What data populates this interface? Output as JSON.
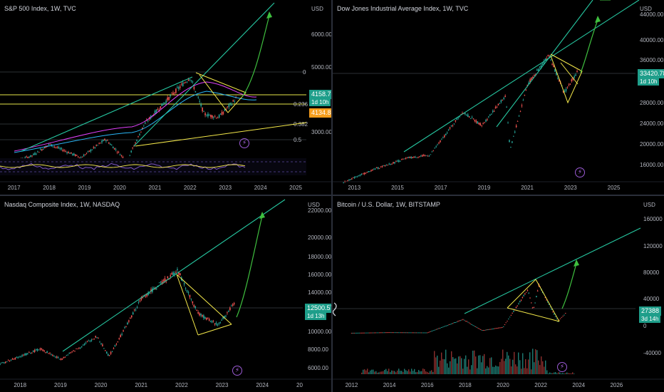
{
  "colors": {
    "trend": "#26c6a0",
    "wedge": "#f5e94a",
    "projection": "#3fbf3f",
    "candle_up": "#26a69a",
    "candle_down": "#ef5350",
    "price_tag": "#1e9e8a",
    "orange_tag": "#f59d1c"
  },
  "panels": [
    {
      "id": "spx",
      "title": "S&P 500 Index, 1W, TVC",
      "currency": "USD",
      "price_label": "4158.78",
      "countdown": "1d 10h",
      "secondary_label": "4134.83",
      "y_ticks": [
        "6000.00",
        "5000.00",
        "3000.00"
      ],
      "fib_levels": [
        "0",
        "0.236",
        "0.382",
        "0.5"
      ],
      "x_ticks": [
        "2017",
        "2018",
        "2019",
        "2020",
        "2021",
        "2022",
        "2023",
        "2024",
        "2025"
      ]
    },
    {
      "id": "dji",
      "title": "Dow Jones Industrial Average Index, 1W, TVC",
      "currency": "USD",
      "price_label": "33420.78",
      "countdown": "1d 10h",
      "y_ticks": [
        "44000.00",
        "40000.00",
        "36000.00",
        "28000.00",
        "24000.00",
        "20000.00",
        "16000.00"
      ],
      "x_ticks": [
        "2013",
        "2015",
        "2017",
        "2019",
        "2021",
        "2023",
        "2025"
      ]
    },
    {
      "id": "ndx",
      "title": "Nasdaq Composite Index, 1W, NASDAQ",
      "currency": "USD",
      "price_label": "12500.57",
      "countdown": "1d 13h",
      "y_ticks": [
        "22000.00",
        "20000.00",
        "18000.00",
        "16000.00",
        "14000.00",
        "10000.00",
        "8000.00",
        "6000.00"
      ],
      "x_ticks": [
        "2018",
        "2019",
        "2020",
        "2021",
        "2022",
        "2023",
        "2024",
        "20"
      ]
    },
    {
      "id": "btc",
      "title": "Bitcoin / U.S. Dollar, 1W, BITSTAMP",
      "currency": "USD",
      "price_label": "27388",
      "countdown": "3d 14h",
      "y_ticks": [
        "160000",
        "120000",
        "80000",
        "40000",
        "0",
        "-40000"
      ],
      "x_ticks": [
        "2012",
        "2014",
        "2016",
        "2018",
        "2020",
        "2022",
        "2024",
        "2026"
      ]
    }
  ],
  "chart_data": [
    {
      "type": "line",
      "title": "S&P 500 Index, 1W, TVC",
      "x": [
        2016.6,
        2017.5,
        2018.0,
        2018.9,
        2019.6,
        2020.2,
        2020.7,
        2021.5,
        2022.0,
        2022.4,
        2022.8,
        2023.3
      ],
      "series": [
        {
          "values": [
            2150,
            2450,
            2800,
            2400,
            2950,
            2300,
            3400,
            4300,
            4800,
            3700,
            3600,
            4158
          ]
        }
      ],
      "ylim": [
        2000,
        7000
      ]
    },
    {
      "type": "line",
      "title": "Dow Jones Industrial Average Index, 1W, TVC",
      "x": [
        2012.5,
        2014.0,
        2015.5,
        2016.5,
        2018.0,
        2018.9,
        2020.0,
        2020.2,
        2021.0,
        2022.0,
        2022.7,
        2023.3
      ],
      "series": [
        {
          "values": [
            13000,
            15500,
            17500,
            18000,
            26000,
            23500,
            29000,
            19000,
            31000,
            36500,
            29500,
            33420
          ]
        }
      ],
      "ylim": [
        14000,
        46000
      ]
    },
    {
      "type": "line",
      "title": "Nasdaq Composite Index, 1W, NASDAQ",
      "x": [
        2017.5,
        2018.5,
        2019.0,
        2019.9,
        2020.2,
        2021.0,
        2021.9,
        2022.4,
        2022.9,
        2023.3
      ],
      "series": [
        {
          "values": [
            6200,
            7800,
            6700,
            9100,
            7000,
            13000,
            16000,
            11500,
            10300,
            12500
          ]
        }
      ],
      "ylim": [
        5000,
        23000
      ]
    },
    {
      "type": "line",
      "title": "Bitcoin / U.S. Dollar, 1W, BITSTAMP",
      "x": [
        2012.0,
        2014.0,
        2016.0,
        2017.9,
        2018.9,
        2020.0,
        2021.3,
        2021.6,
        2021.9,
        2022.9,
        2023.3
      ],
      "series": [
        {
          "values": [
            10,
            700,
            400,
            19000,
            3500,
            8000,
            60000,
            32000,
            67000,
            16000,
            27388
          ]
        }
      ],
      "ylim": [
        -60000,
        180000
      ]
    }
  ]
}
